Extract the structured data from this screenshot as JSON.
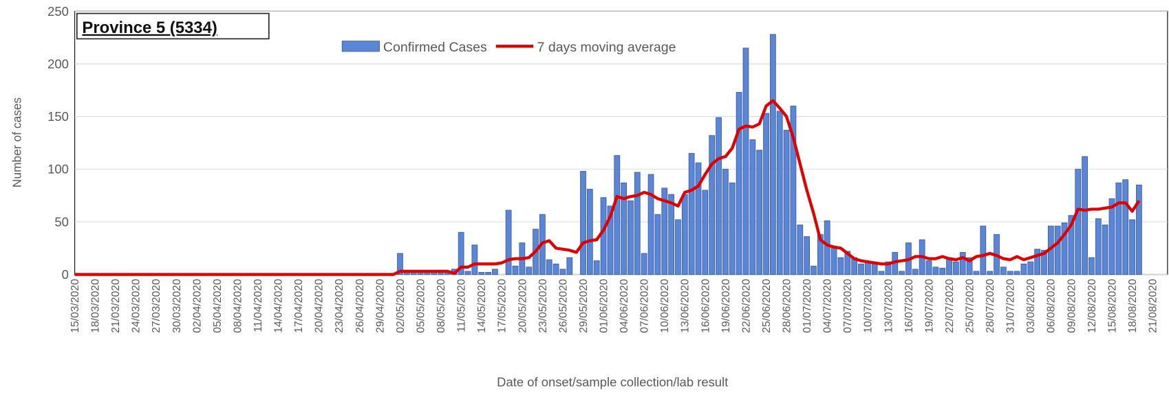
{
  "chart_data": {
    "type": "bar",
    "title": "Province 5 (5334)",
    "x_label": "Date of onset/sample collection/lab result",
    "y_label": "Number of cases",
    "categories": [
      "15/03/2020",
      null,
      null,
      "18/03/2020",
      null,
      null,
      "21/03/2020",
      null,
      null,
      "24/03/2020",
      null,
      null,
      "27/03/2020",
      null,
      null,
      "30/03/2020",
      null,
      null,
      "02/04/2020",
      null,
      null,
      "05/04/2020",
      null,
      null,
      "08/04/2020",
      null,
      null,
      "11/04/2020",
      null,
      null,
      "14/04/2020",
      null,
      null,
      "17/04/2020",
      null,
      null,
      "20/04/2020",
      null,
      null,
      "23/04/2020",
      null,
      null,
      "26/04/2020",
      null,
      null,
      "29/04/2020",
      null,
      null,
      "02/05/2020",
      null,
      null,
      "05/05/2020",
      null,
      null,
      "08/05/2020",
      null,
      null,
      "11/05/2020",
      null,
      null,
      "14/05/2020",
      null,
      null,
      "17/05/2020",
      null,
      null,
      "20/05/2020",
      null,
      null,
      "23/05/2020",
      null,
      null,
      "26/05/2020",
      null,
      null,
      "29/05/2020",
      null,
      null,
      "01/06/2020",
      null,
      null,
      "04/06/2020",
      null,
      null,
      "07/06/2020",
      null,
      null,
      "10/06/2020",
      null,
      null,
      "13/06/2020",
      null,
      null,
      "16/06/2020",
      null,
      null,
      "19/06/2020",
      null,
      null,
      "22/06/2020",
      null,
      null,
      "25/06/2020",
      null,
      null,
      "28/06/2020",
      null,
      null,
      "01/07/2020",
      null,
      null,
      "04/07/2020",
      null,
      null,
      "07/07/2020",
      null,
      null,
      "10/07/2020",
      null,
      null,
      "13/07/2020",
      null,
      null,
      "16/07/2020",
      null,
      null,
      "19/07/2020",
      null,
      null,
      "22/07/2020",
      null,
      null,
      "25/07/2020",
      null,
      null,
      "28/07/2020",
      null,
      null,
      "31/07/2020",
      null,
      null,
      "03/08/2020",
      null,
      null,
      "06/08/2020",
      null,
      null,
      "09/08/2020",
      null,
      null,
      "12/08/2020",
      null,
      null,
      "15/08/2020",
      null,
      null,
      "18/08/2020",
      null,
      null,
      "21/08/2020"
    ],
    "series": [
      {
        "name": "Confirmed Cases",
        "type": "bar",
        "color": "#5b86d6",
        "values": [
          0,
          0,
          0,
          0,
          0,
          0,
          0,
          0,
          0,
          0,
          0,
          0,
          0,
          0,
          0,
          0,
          0,
          0,
          0,
          0,
          0,
          0,
          0,
          0,
          0,
          0,
          0,
          0,
          0,
          0,
          0,
          0,
          0,
          0,
          0,
          0,
          0,
          0,
          0,
          0,
          0,
          0,
          0,
          0,
          0,
          0,
          0,
          0,
          20,
          2,
          3,
          3,
          2,
          3,
          4,
          3,
          5,
          40,
          3,
          28,
          2,
          2,
          5,
          0,
          61,
          8,
          30,
          7,
          43,
          57,
          14,
          10,
          5,
          16,
          0,
          98,
          81,
          13,
          73,
          65,
          113,
          87,
          70,
          97,
          20,
          95,
          57,
          82,
          76,
          52,
          76,
          115,
          106,
          80,
          132,
          149,
          100,
          87,
          173,
          215,
          128,
          118,
          153,
          228,
          155,
          137,
          160,
          47,
          36,
          8,
          38,
          51,
          27,
          16,
          22,
          16,
          10,
          12,
          10,
          3,
          12,
          21,
          3,
          30,
          5,
          33,
          13,
          7,
          6,
          16,
          12,
          21,
          16,
          3,
          46,
          3,
          38,
          7,
          3,
          3,
          10,
          12,
          24,
          23,
          46,
          46,
          49,
          56,
          100,
          112,
          16,
          53,
          47,
          72,
          87,
          90,
          52,
          85,
          0,
          0
        ]
      },
      {
        "name": "7 days moving average",
        "type": "line",
        "color": "#e00000",
        "values": [
          0,
          0,
          0,
          0,
          0,
          0,
          0,
          0,
          0,
          0,
          0,
          0,
          0,
          0,
          0,
          0,
          0,
          0,
          0,
          0,
          0,
          0,
          0,
          0,
          0,
          0,
          0,
          0,
          0,
          0,
          0,
          0,
          0,
          0,
          0,
          0,
          0,
          0,
          0,
          0,
          0,
          0,
          0,
          0,
          0,
          0,
          0,
          0,
          3,
          3,
          3,
          3,
          3,
          3,
          3,
          3,
          1,
          7,
          7,
          10,
          10,
          10,
          10,
          11,
          14,
          15,
          15,
          16,
          22,
          30,
          32,
          25,
          24,
          23,
          21,
          30,
          32,
          33,
          42,
          55,
          74,
          72,
          74,
          75,
          78,
          76,
          72,
          70,
          68,
          65,
          78,
          80,
          84,
          95,
          105,
          110,
          112,
          120,
          138,
          141,
          140,
          143,
          160,
          165,
          158,
          150,
          130,
          105,
          80,
          58,
          33,
          28,
          26,
          25,
          20,
          15,
          13,
          12,
          11,
          10,
          10,
          12,
          13,
          14,
          17,
          17,
          15,
          15,
          17,
          15,
          14,
          16,
          13,
          17,
          18,
          20,
          18,
          15,
          14,
          17,
          14,
          16,
          18,
          20,
          25,
          30,
          38,
          47,
          62,
          61,
          62,
          62,
          63,
          64,
          68,
          68,
          60,
          70,
          null,
          null
        ]
      }
    ],
    "ylim": [
      0,
      250
    ],
    "yticks": [
      0,
      50,
      100,
      150,
      200,
      250
    ],
    "grid": true
  }
}
